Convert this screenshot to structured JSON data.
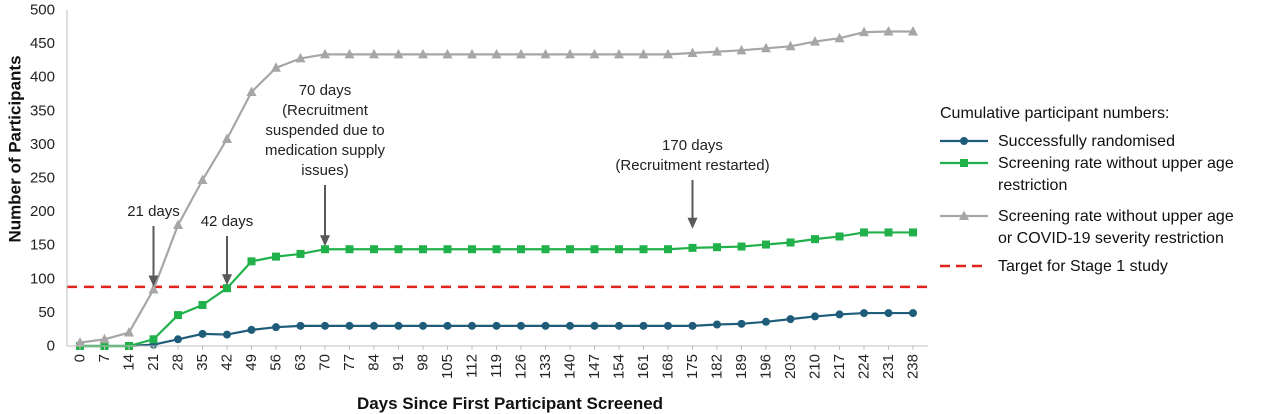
{
  "chart_data": {
    "type": "line",
    "xlabel": "Days Since First Participant Screened",
    "ylabel": "Number of Participants",
    "ylim": [
      0,
      500
    ],
    "yticks": [
      0,
      50,
      100,
      150,
      200,
      250,
      300,
      350,
      400,
      450,
      500
    ],
    "x": [
      0,
      7,
      14,
      21,
      28,
      35,
      42,
      49,
      56,
      63,
      70,
      77,
      84,
      91,
      98,
      105,
      112,
      119,
      126,
      133,
      140,
      147,
      154,
      161,
      168,
      175,
      182,
      189,
      196,
      203,
      210,
      217,
      224,
      231,
      238
    ],
    "legend_title": "Cumulative participant numbers:",
    "legend_position": "right",
    "series": [
      {
        "name": "Successfully randomised",
        "color": "#1f5c7a",
        "marker": "circle",
        "values": [
          0,
          0,
          0,
          2,
          10,
          18,
          17,
          24,
          28,
          30,
          30,
          30,
          30,
          30,
          30,
          30,
          30,
          30,
          30,
          30,
          30,
          30,
          30,
          30,
          30,
          30,
          32,
          33,
          36,
          40,
          44,
          47,
          49,
          49,
          49
        ]
      },
      {
        "name_lines": [
          "Screening rate without upper age",
          "restriction"
        ],
        "color": "#21b14a",
        "marker": "square",
        "values": [
          0,
          0,
          0,
          10,
          46,
          61,
          86,
          126,
          133,
          137,
          144,
          144,
          144,
          144,
          144,
          144,
          144,
          144,
          144,
          144,
          144,
          144,
          144,
          144,
          144,
          146,
          147,
          148,
          151,
          154,
          159,
          163,
          169,
          169,
          169
        ]
      },
      {
        "name_lines": [
          "Screening rate without upper age",
          "or COVID-19 severity restriction"
        ],
        "color": "#a6a6a6",
        "marker": "triangle",
        "values": [
          5,
          10,
          20,
          84,
          180,
          247,
          308,
          378,
          414,
          428,
          434,
          434,
          434,
          434,
          434,
          434,
          434,
          434,
          434,
          434,
          434,
          434,
          434,
          434,
          434,
          436,
          438,
          440,
          443,
          446,
          453,
          458,
          467,
          468,
          468
        ]
      }
    ],
    "target": {
      "name": "Target for Stage 1 study",
      "value": 88,
      "color": "#e0231b"
    },
    "annotations": [
      {
        "lines": [
          "21 days"
        ],
        "x": 21,
        "arrow_to": 84
      },
      {
        "lines": [
          "42 days"
        ],
        "x": 42,
        "arrow_to": 86
      },
      {
        "lines": [
          "70 days",
          "(Recruitment",
          "suspended due to",
          "medication supply",
          "issues)"
        ],
        "x": 70,
        "arrow_to": 144
      },
      {
        "lines": [
          "170 days",
          "(Recruitment restarted)"
        ],
        "x": 175,
        "arrow_to": 170
      }
    ],
    "grid": false
  }
}
